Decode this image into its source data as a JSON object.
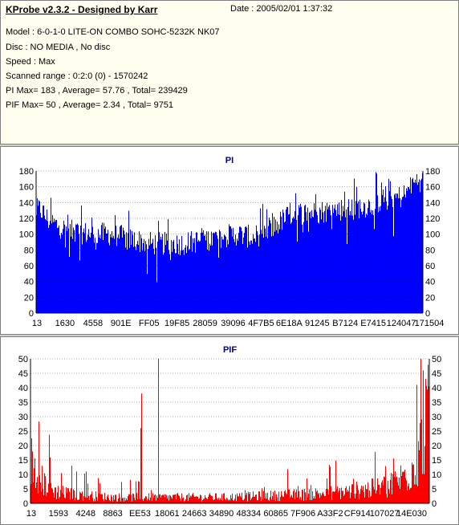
{
  "header": {
    "title": "KProbe v2.3.2 - Designed by Karr",
    "date": "Date : 2005/02/01 1:37:32",
    "model": "Model : 6-0-1-0 LITE-ON COMBO SOHC-5232K NK07",
    "disc": "Disc : NO MEDIA , No disc",
    "speed": "Speed : Max",
    "scanned_range": "Scanned range : 0:2:0 (0) - 1570242",
    "pi_summary": "PI Max= 183 , Average= 57.76 , Total= 239429",
    "pif_summary": "PIF Max= 50 , Average= 2.34 , Total= 9751"
  },
  "colors": {
    "pi_bar": "#0000ff",
    "pif_bar": "#ff0000",
    "title_text": "#000080",
    "header_bg": "#fffff0"
  },
  "chart_data": [
    {
      "type": "bar",
      "title": "PI",
      "ylim": [
        0,
        180
      ],
      "yticks": [
        0,
        20,
        40,
        60,
        80,
        100,
        120,
        140,
        160,
        180
      ],
      "xtick_labels": [
        "13",
        "1630",
        "4558",
        "901E",
        "FF05",
        "19F85",
        "28059",
        "39096",
        "4F7B5",
        "6E18A",
        "91245",
        "B7124",
        "E7415",
        "124047",
        "171504"
      ],
      "grid": true,
      "max": 183,
      "average": 57.76,
      "profile": {
        "x": [
          0,
          0.01,
          0.03,
          0.08,
          0.15,
          0.2,
          0.24,
          0.3,
          0.38,
          0.45,
          0.52,
          0.56,
          0.6,
          0.66,
          0.73,
          0.8,
          0.86,
          0.9,
          0.95,
          0.97,
          0.99,
          1.0
        ],
        "y": [
          130,
          132,
          118,
          104,
          100,
          100,
          94,
          88,
          88,
          94,
          100,
          96,
          104,
          126,
          128,
          132,
          136,
          144,
          148,
          160,
          170,
          165
        ]
      }
    },
    {
      "type": "bar",
      "title": "PIF",
      "ylim": [
        0,
        50
      ],
      "yticks": [
        0,
        5,
        10,
        15,
        20,
        25,
        30,
        35,
        40,
        45,
        50
      ],
      "xtick_labels": [
        "13",
        "1593",
        "4248",
        "8863",
        "EE53",
        "18061",
        "24663",
        "34890",
        "48334",
        "60865",
        "7F906",
        "A33F2",
        "CF914",
        "107027",
        "14E030"
      ],
      "grid": true,
      "max": 50,
      "average": 2.34,
      "profile": {
        "x": [
          0,
          0.01,
          0.03,
          0.06,
          0.1,
          0.2,
          0.35,
          0.5,
          0.6,
          0.7,
          0.8,
          0.87,
          0.92,
          0.96,
          0.99,
          1.0
        ],
        "y": [
          14,
          12,
          7,
          4,
          3,
          2,
          2,
          2,
          2.5,
          3,
          4,
          5,
          7,
          12,
          24,
          28
        ]
      },
      "spikes": [
        {
          "x": 0.279,
          "y": 38
        },
        {
          "x": 0.276,
          "y": 26
        },
        {
          "x": 0.321,
          "y": 50
        },
        {
          "x": 0.103,
          "y": 13
        },
        {
          "x": 0.14,
          "y": 11
        },
        {
          "x": 0.97,
          "y": 41
        },
        {
          "x": 0.985,
          "y": 46
        }
      ]
    }
  ]
}
